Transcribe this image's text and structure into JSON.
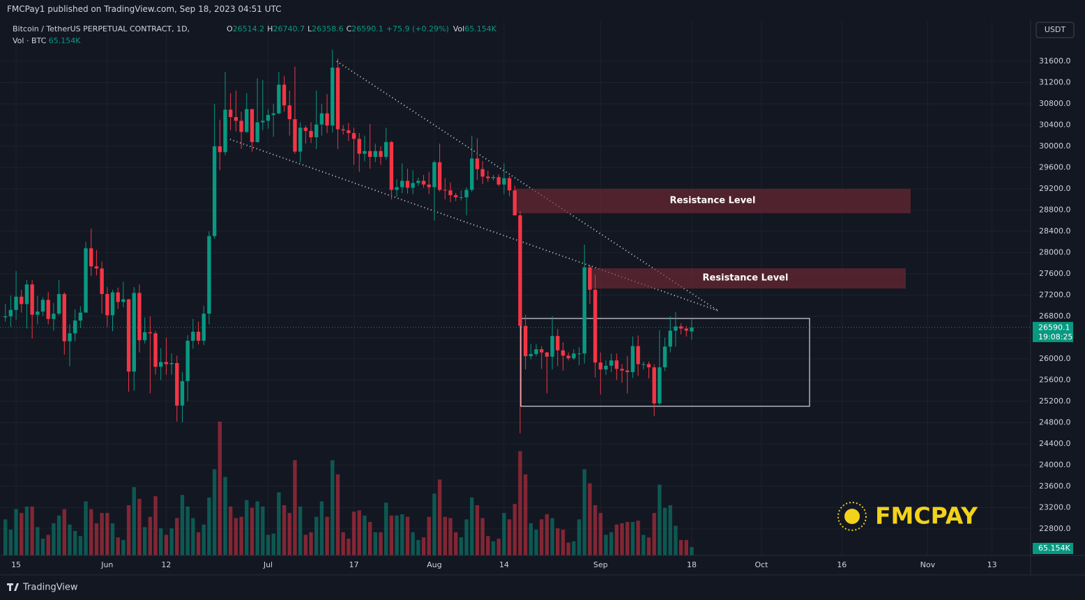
{
  "header": {
    "published": "FMCPay1 published on TradingView.com, Sep 18, 2023 04:51 UTC",
    "symbol": "Bitcoin / TetherUS PERPETUAL CONTRACT, 1D,",
    "ohlc_labels": [
      "O",
      "H",
      "L",
      "C"
    ],
    "change": "+75.9 (+0.29%)",
    "vol_prefix": "Vol",
    "vol_label": "65.154K",
    "vol_title": "Vol · BTC",
    "currency": "USDT",
    "countdown": "19:08:25",
    "footer": "TradingView",
    "logo": "FMCPAY"
  },
  "annotations": [
    "Resistance Level",
    "Resistance Level"
  ],
  "chart_data": {
    "type": "candlestick",
    "up_color": "#089981",
    "down_color": "#f23645",
    "xlim": [
      -1,
      191.2
    ],
    "ylim": [
      22300,
      32360
    ],
    "xticks": [
      {
        "value": 2,
        "label": "15"
      },
      {
        "value": 19,
        "label": "Jun"
      },
      {
        "value": 30,
        "label": "12"
      },
      {
        "value": 49,
        "label": "Jul"
      },
      {
        "value": 65,
        "label": "17"
      },
      {
        "value": 80,
        "label": "Aug"
      },
      {
        "value": 93,
        "label": "14"
      },
      {
        "value": 111,
        "label": "Sep"
      },
      {
        "value": 128,
        "label": "18"
      },
      {
        "value": 141,
        "label": "Oct"
      },
      {
        "value": 156,
        "label": "16"
      },
      {
        "value": 172,
        "label": "Nov"
      },
      {
        "value": 184,
        "label": "13"
      }
    ],
    "yticks": [
      {
        "value": 22800,
        "label": "22800.0"
      },
      {
        "value": 23200,
        "label": "23200.0"
      },
      {
        "value": 23600,
        "label": "23600.0"
      },
      {
        "value": 24000,
        "label": "24000.0"
      },
      {
        "value": 24400,
        "label": "24400.0"
      },
      {
        "value": 24800,
        "label": "24800.0"
      },
      {
        "value": 25200,
        "label": "25200.0"
      },
      {
        "value": 25600,
        "label": "25600.0"
      },
      {
        "value": 26000,
        "label": "26000.0"
      },
      {
        "value": 26400,
        "label": "26400.0"
      },
      {
        "value": 26800,
        "label": "26800.0"
      },
      {
        "value": 27200,
        "label": "27200.0"
      },
      {
        "value": 27600,
        "label": "27600.0"
      },
      {
        "value": 28000,
        "label": "28000.0"
      },
      {
        "value": 28400,
        "label": "28400.0"
      },
      {
        "value": 28800,
        "label": "28800.0"
      },
      {
        "value": 29200,
        "label": "29200.0"
      },
      {
        "value": 29600,
        "label": "29600.0"
      },
      {
        "value": 30000,
        "label": "30000.0"
      },
      {
        "value": 30400,
        "label": "30400.0"
      },
      {
        "value": 30800,
        "label": "30800.0"
      },
      {
        "value": 31200,
        "label": "31200.0"
      },
      {
        "value": 31600,
        "label": "31600.0"
      }
    ],
    "candles": [
      [
        26780,
        27030,
        26700,
        26800
      ],
      [
        26800,
        27190,
        26600,
        26920
      ],
      [
        26920,
        27650,
        26730,
        27170
      ],
      [
        27170,
        27300,
        26870,
        27030
      ],
      [
        27030,
        27480,
        26570,
        27400
      ],
      [
        27400,
        27480,
        26380,
        26830
      ],
      [
        26830,
        27180,
        26650,
        26890
      ],
      [
        26890,
        27160,
        26810,
        27110
      ],
      [
        27110,
        27260,
        26650,
        26750
      ],
      [
        26750,
        27050,
        26530,
        26850
      ],
      [
        26850,
        27480,
        26820,
        27220
      ],
      [
        27220,
        27250,
        26080,
        26330
      ],
      [
        26330,
        26650,
        25860,
        26480
      ],
      [
        26480,
        26930,
        26330,
        26720
      ],
      [
        26720,
        26990,
        26580,
        26870
      ],
      [
        26870,
        28200,
        26870,
        28080
      ],
      [
        28080,
        28450,
        27560,
        27740
      ],
      [
        27740,
        28050,
        27570,
        27700
      ],
      [
        27700,
        27830,
        26850,
        27220
      ],
      [
        27220,
        27350,
        26600,
        26820
      ],
      [
        26820,
        27300,
        26520,
        27250
      ],
      [
        27250,
        27340,
        26940,
        27070
      ],
      [
        27070,
        27450,
        26970,
        27120
      ],
      [
        27120,
        27130,
        25380,
        25760
      ],
      [
        25760,
        27350,
        25400,
        27240
      ],
      [
        27240,
        27400,
        26120,
        26350
      ],
      [
        26350,
        26780,
        26290,
        26500
      ],
      [
        26500,
        26800,
        25350,
        26480
      ],
      [
        26480,
        26530,
        25700,
        25850
      ],
      [
        25850,
        26200,
        25600,
        25940
      ],
      [
        25940,
        26400,
        25700,
        25900
      ],
      [
        25900,
        26100,
        25700,
        25920
      ],
      [
        25920,
        26060,
        24820,
        25120
      ],
      [
        25120,
        25750,
        24800,
        25580
      ],
      [
        25580,
        26450,
        25200,
        26340
      ],
      [
        26340,
        26750,
        26190,
        26510
      ],
      [
        26510,
        26700,
        26270,
        26340
      ],
      [
        26340,
        27000,
        26260,
        26850
      ],
      [
        26850,
        28400,
        26650,
        28310
      ],
      [
        28310,
        30800,
        28260,
        30000
      ],
      [
        30000,
        30500,
        29550,
        29890
      ],
      [
        29890,
        31400,
        29830,
        30690
      ],
      [
        30690,
        31000,
        30300,
        30550
      ],
      [
        30550,
        31050,
        30280,
        30480
      ],
      [
        30480,
        30650,
        29950,
        30270
      ],
      [
        30270,
        31000,
        30250,
        30700
      ],
      [
        30700,
        30700,
        29900,
        30080
      ],
      [
        30080,
        31280,
        30070,
        30450
      ],
      [
        30450,
        31250,
        30300,
        30480
      ],
      [
        30480,
        30700,
        30330,
        30590
      ],
      [
        30590,
        30800,
        30180,
        30620
      ],
      [
        30620,
        31400,
        30600,
        31160
      ],
      [
        31160,
        31320,
        30650,
        30770
      ],
      [
        30770,
        31050,
        30200,
        30510
      ],
      [
        30510,
        31500,
        29860,
        29900
      ],
      [
        29900,
        30450,
        29700,
        30350
      ],
      [
        30350,
        30390,
        30050,
        30290
      ],
      [
        30290,
        30450,
        30060,
        30170
      ],
      [
        30170,
        31050,
        29950,
        30410
      ],
      [
        30410,
        30800,
        30200,
        30620
      ],
      [
        30620,
        30980,
        30250,
        30390
      ],
      [
        30390,
        31820,
        30260,
        31480
      ],
      [
        31480,
        31650,
        29950,
        30320
      ],
      [
        30320,
        30400,
        30220,
        30300
      ],
      [
        30300,
        30440,
        30100,
        30250
      ],
      [
        30250,
        30350,
        29650,
        30140
      ],
      [
        30140,
        30250,
        29520,
        29860
      ],
      [
        29860,
        30200,
        29720,
        29910
      ],
      [
        29910,
        30420,
        29580,
        29800
      ],
      [
        29800,
        30050,
        29700,
        29910
      ],
      [
        29910,
        30000,
        29650,
        29800
      ],
      [
        29800,
        30350,
        29750,
        30080
      ],
      [
        30080,
        30100,
        29000,
        29180
      ],
      [
        29180,
        29380,
        29050,
        29230
      ],
      [
        29230,
        29680,
        29120,
        29350
      ],
      [
        29350,
        29580,
        29110,
        29220
      ],
      [
        29220,
        29550,
        29100,
        29310
      ],
      [
        29310,
        29410,
        29250,
        29350
      ],
      [
        29350,
        29460,
        29220,
        29280
      ],
      [
        29280,
        29520,
        29100,
        29230
      ],
      [
        29230,
        29730,
        28600,
        29700
      ],
      [
        29700,
        30050,
        29150,
        29180
      ],
      [
        29180,
        29400,
        29000,
        29170
      ],
      [
        29170,
        29320,
        28950,
        29080
      ],
      [
        29080,
        29120,
        28970,
        29040
      ],
      [
        29040,
        29170,
        28980,
        29040
      ],
      [
        29040,
        29230,
        28700,
        29180
      ],
      [
        29180,
        30200,
        29140,
        29770
      ],
      [
        29770,
        30150,
        29370,
        29570
      ],
      [
        29570,
        29720,
        29290,
        29430
      ],
      [
        29430,
        29540,
        29330,
        29400
      ],
      [
        29400,
        29460,
        29360,
        29420
      ],
      [
        29420,
        29470,
        29250,
        29280
      ],
      [
        29280,
        29680,
        29100,
        29400
      ],
      [
        29400,
        29440,
        29060,
        29170
      ],
      [
        29170,
        29260,
        28700,
        28700
      ],
      [
        28700,
        28780,
        24600,
        26620
      ],
      [
        26620,
        26830,
        25800,
        26050
      ],
      [
        26050,
        26280,
        25990,
        26090
      ],
      [
        26090,
        26280,
        26050,
        26180
      ],
      [
        26180,
        26240,
        25810,
        26120
      ],
      [
        26120,
        26130,
        25350,
        26040
      ],
      [
        26040,
        26800,
        25800,
        26430
      ],
      [
        26430,
        26560,
        25860,
        26160
      ],
      [
        26160,
        26310,
        25780,
        26060
      ],
      [
        26060,
        26120,
        25970,
        26010
      ],
      [
        26010,
        26180,
        25980,
        26100
      ],
      [
        26100,
        26220,
        25880,
        26100
      ],
      [
        26100,
        28150,
        25910,
        27720
      ],
      [
        27720,
        27760,
        27030,
        27300
      ],
      [
        27300,
        27580,
        25650,
        25930
      ],
      [
        25930,
        26120,
        25330,
        25800
      ],
      [
        25800,
        25970,
        25700,
        25870
      ],
      [
        25870,
        26100,
        25750,
        25970
      ],
      [
        25970,
        26100,
        25600,
        25810
      ],
      [
        25810,
        25900,
        25550,
        25780
      ],
      [
        25780,
        26050,
        25350,
        25750
      ],
      [
        25750,
        26420,
        25640,
        26240
      ],
      [
        26240,
        26440,
        25680,
        25900
      ],
      [
        25900,
        25950,
        25800,
        25900
      ],
      [
        25900,
        25950,
        25630,
        25840
      ],
      [
        25840,
        25900,
        24920,
        25160
      ],
      [
        25160,
        26540,
        25130,
        25840
      ],
      [
        25840,
        26400,
        25770,
        26230
      ],
      [
        26230,
        26800,
        26120,
        26530
      ],
      [
        26530,
        26880,
        26230,
        26610
      ],
      [
        26610,
        26670,
        26460,
        26570
      ],
      [
        26570,
        26620,
        26420,
        26530
      ],
      [
        26514.2,
        26740.7,
        26358.6,
        26590.1
      ]
    ],
    "volume": [
      280000,
      200000,
      360000,
      330000,
      380000,
      380000,
      220000,
      130000,
      160000,
      250000,
      310000,
      360000,
      240000,
      190000,
      150000,
      420000,
      360000,
      250000,
      330000,
      330000,
      250000,
      140000,
      120000,
      390000,
      530000,
      440000,
      220000,
      300000,
      460000,
      210000,
      160000,
      210000,
      290000,
      470000,
      380000,
      290000,
      180000,
      240000,
      450000,
      670000,
      1040000,
      610000,
      380000,
      290000,
      300000,
      430000,
      370000,
      420000,
      380000,
      160000,
      170000,
      490000,
      390000,
      330000,
      740000,
      380000,
      160000,
      180000,
      300000,
      420000,
      300000,
      740000,
      630000,
      180000,
      130000,
      340000,
      350000,
      310000,
      260000,
      180000,
      180000,
      410000,
      310000,
      310000,
      320000,
      300000,
      180000,
      120000,
      140000,
      300000,
      480000,
      590000,
      300000,
      290000,
      180000,
      140000,
      280000,
      450000,
      390000,
      290000,
      150000,
      110000,
      130000,
      330000,
      280000,
      400000,
      810000,
      630000,
      250000,
      200000,
      280000,
      320000,
      290000,
      210000,
      200000,
      100000,
      110000,
      280000,
      670000,
      560000,
      390000,
      330000,
      160000,
      180000,
      240000,
      250000,
      260000,
      260000,
      270000,
      160000,
      140000,
      330000,
      550000,
      370000,
      390000,
      230000,
      120000,
      120000,
      65154
    ]
  }
}
